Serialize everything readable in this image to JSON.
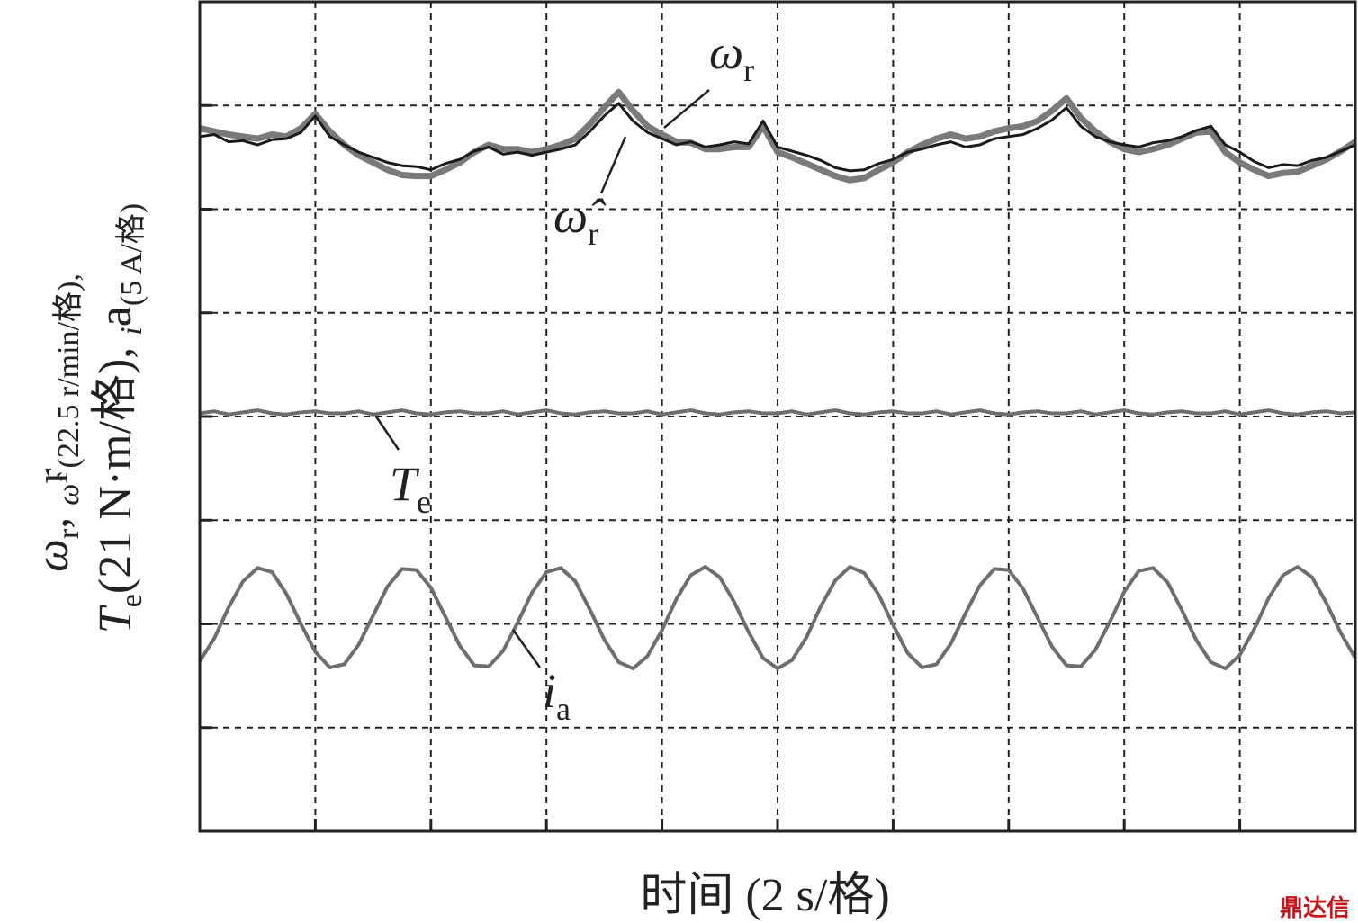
{
  "chart_data": {
    "type": "line",
    "ylabel_lines": [
      [
        "ω",
        "r",
        ", ",
        "ω̂",
        "r",
        "(22.5 r/min/格),"
      ],
      [
        "T",
        "e",
        "(21 N·m/格), ",
        "i",
        "a",
        "(5 A/格)"
      ]
    ],
    "xlabel": "时间 (2 s/格)",
    "xlim": [
      0,
      20
    ],
    "xticks": [
      0,
      2,
      4,
      6,
      8,
      10,
      12,
      14,
      16,
      18,
      20
    ],
    "ylim": [
      0,
      8
    ],
    "yticks": [
      0,
      1,
      2,
      3,
      4,
      5,
      6,
      7,
      8
    ],
    "grid": true,
    "x": [
      0,
      0.25,
      0.5,
      0.75,
      1,
      1.25,
      1.5,
      1.75,
      2,
      2.25,
      2.5,
      2.75,
      3,
      3.25,
      3.5,
      3.75,
      4,
      4.25,
      4.5,
      4.75,
      5,
      5.25,
      5.5,
      5.75,
      6,
      6.25,
      6.5,
      6.75,
      7,
      7.25,
      7.5,
      7.75,
      8,
      8.25,
      8.5,
      8.75,
      9,
      9.25,
      9.5,
      9.75,
      10,
      10.25,
      10.5,
      10.75,
      11,
      11.25,
      11.5,
      11.75,
      12,
      12.25,
      12.5,
      12.75,
      13,
      13.25,
      13.5,
      13.75,
      14,
      14.25,
      14.5,
      14.75,
      15,
      15.25,
      15.5,
      15.75,
      16,
      16.25,
      16.5,
      16.75,
      17,
      17.25,
      17.5,
      17.75,
      18,
      18.25,
      18.5,
      18.75,
      19,
      19.25,
      19.5,
      19.75,
      20
    ],
    "series": [
      {
        "label": "ω",
        "label_sub": "r",
        "color": "#7a7a7a",
        "width": 7,
        "values": [
          6.78,
          6.75,
          6.72,
          6.7,
          6.68,
          6.72,
          6.7,
          6.78,
          6.92,
          6.75,
          6.62,
          6.52,
          6.45,
          6.38,
          6.33,
          6.32,
          6.32,
          6.38,
          6.45,
          6.55,
          6.62,
          6.58,
          6.58,
          6.55,
          6.58,
          6.62,
          6.68,
          6.82,
          6.98,
          7.13,
          6.95,
          6.8,
          6.72,
          6.65,
          6.64,
          6.58,
          6.58,
          6.6,
          6.6,
          6.8,
          6.55,
          6.5,
          6.44,
          6.38,
          6.32,
          6.28,
          6.3,
          6.38,
          6.45,
          6.55,
          6.62,
          6.68,
          6.72,
          6.68,
          6.7,
          6.75,
          6.78,
          6.8,
          6.85,
          6.95,
          7.07,
          6.88,
          6.75,
          6.65,
          6.58,
          6.55,
          6.58,
          6.62,
          6.68,
          6.74,
          6.75,
          6.55,
          6.45,
          6.38,
          6.32,
          6.35,
          6.36,
          6.42,
          6.48,
          6.56,
          6.65
        ]
      },
      {
        "label": "ω̂",
        "label_sub": "r",
        "color": "#1a1a1a",
        "width": 3,
        "values": [
          6.7,
          6.72,
          6.65,
          6.66,
          6.62,
          6.67,
          6.68,
          6.74,
          6.9,
          6.7,
          6.62,
          6.55,
          6.5,
          6.45,
          6.42,
          6.41,
          6.38,
          6.44,
          6.48,
          6.56,
          6.6,
          6.53,
          6.55,
          6.52,
          6.55,
          6.58,
          6.62,
          6.75,
          6.9,
          7.02,
          6.85,
          6.74,
          6.68,
          6.62,
          6.65,
          6.6,
          6.62,
          6.65,
          6.63,
          6.85,
          6.6,
          6.56,
          6.52,
          6.47,
          6.4,
          6.37,
          6.38,
          6.44,
          6.48,
          6.55,
          6.58,
          6.62,
          6.65,
          6.6,
          6.62,
          6.68,
          6.7,
          6.72,
          6.78,
          6.86,
          6.98,
          6.8,
          6.7,
          6.65,
          6.62,
          6.6,
          6.64,
          6.66,
          6.7,
          6.76,
          6.8,
          6.62,
          6.55,
          6.46,
          6.4,
          6.43,
          6.42,
          6.47,
          6.5,
          6.56,
          6.62
        ]
      },
      {
        "label": "T",
        "label_sub": "e",
        "color": "#6e6e6e",
        "width": 4,
        "values": [
          4.03,
          4.05,
          4.02,
          4.04,
          4.06,
          4.03,
          4.02,
          4.04,
          4.05,
          4.03,
          4.03,
          4.05,
          4.02,
          4.04,
          4.06,
          4.03,
          4.02,
          4.04,
          4.05,
          4.03,
          4.03,
          4.05,
          4.02,
          4.04,
          4.06,
          4.03,
          4.02,
          4.04,
          4.05,
          4.03,
          4.03,
          4.05,
          4.02,
          4.04,
          4.06,
          4.03,
          4.02,
          4.04,
          4.05,
          4.03,
          4.03,
          4.05,
          4.02,
          4.04,
          4.06,
          4.03,
          4.02,
          4.04,
          4.05,
          4.03,
          4.03,
          4.05,
          4.02,
          4.04,
          4.06,
          4.03,
          4.02,
          4.04,
          4.05,
          4.03,
          4.03,
          4.05,
          4.02,
          4.04,
          4.06,
          4.03,
          4.02,
          4.04,
          4.05,
          4.03,
          4.03,
          4.05,
          4.02,
          4.04,
          4.06,
          4.03,
          4.02,
          4.04,
          4.05,
          4.03,
          4.04
        ]
      },
      {
        "label": "i",
        "label_sub": "a",
        "color": "#6e6e6e",
        "width": 4,
        "values": [
          1.64,
          1.86,
          2.16,
          2.41,
          2.54,
          2.5,
          2.29,
          2.0,
          1.73,
          1.58,
          1.61,
          1.8,
          2.08,
          2.36,
          2.53,
          2.52,
          2.35,
          2.07,
          1.79,
          1.6,
          1.59,
          1.74,
          2.01,
          2.3,
          2.5,
          2.54,
          2.41,
          2.14,
          1.85,
          1.63,
          1.57,
          1.69,
          1.94,
          2.24,
          2.47,
          2.55,
          2.45,
          2.21,
          1.92,
          1.67,
          1.57,
          1.65,
          1.87,
          2.17,
          2.42,
          2.55,
          2.49,
          2.28,
          1.99,
          1.72,
          1.58,
          1.61,
          1.81,
          2.1,
          2.37,
          2.53,
          2.52,
          2.34,
          2.06,
          1.78,
          1.6,
          1.59,
          1.75,
          2.02,
          2.31,
          2.51,
          2.54,
          2.4,
          2.13,
          1.84,
          1.63,
          1.57,
          1.7,
          1.95,
          2.25,
          2.47,
          2.55,
          2.45,
          2.2,
          1.91,
          1.67
        ]
      }
    ]
  },
  "watermark": "鼎达信"
}
